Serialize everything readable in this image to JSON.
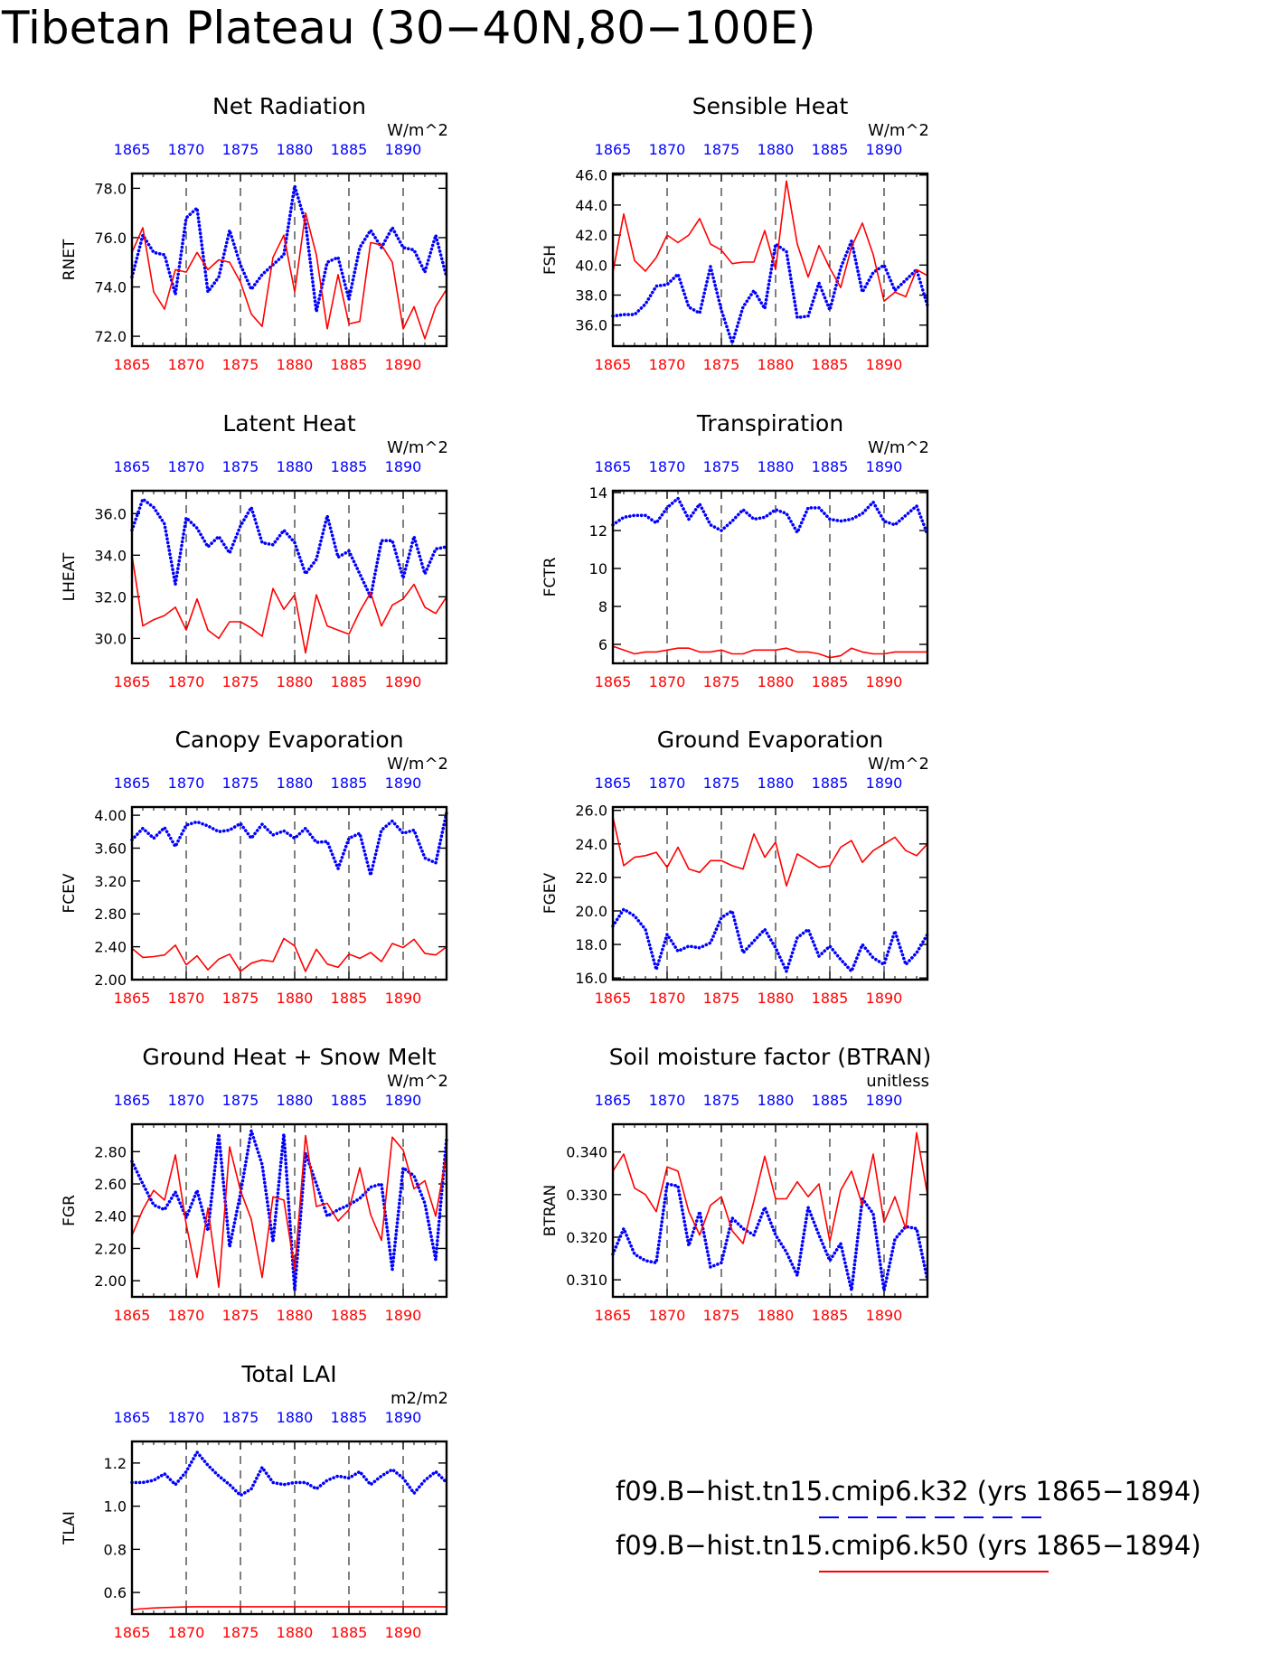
{
  "figure": {
    "title": "Tibetan Plateau (30−40N,80−100E)"
  },
  "colors": {
    "k32": "#0000ff",
    "k50": "#ff0000",
    "axis": "#000000",
    "grid": "#000000"
  },
  "legend": {
    "entries": [
      {
        "label": "f09.B−hist.tn15.cmip6.k32 (yrs 1865−1894)",
        "color": "#0000ff",
        "style": "dashed"
      },
      {
        "label": "f09.B−hist.tn15.cmip6.k50 (yrs 1865−1894)",
        "color": "#ff0000",
        "style": "solid"
      }
    ]
  },
  "chart_data": [
    {
      "type": "line",
      "title": "Net Radiation",
      "ylabel": "RNET",
      "units": "W/m^2",
      "ylim": [
        71.6,
        78.6
      ],
      "yticks": [
        72,
        74,
        76,
        78
      ],
      "ytick_labels": [
        "72.0",
        "74.0",
        "76.0",
        "78.0"
      ],
      "xlim": [
        1865,
        1894
      ],
      "xticks": [
        1865,
        1870,
        1875,
        1880,
        1885,
        1890
      ],
      "series": [
        {
          "name": "f09.B−hist.tn15.cmip6.k32",
          "color": "#0000ff",
          "style": "dotted",
          "values": [
            74.4,
            76.1,
            75.4,
            75.3,
            73.7,
            76.8,
            77.2,
            73.8,
            74.4,
            76.3,
            74.9,
            73.9,
            74.5,
            74.9,
            75.3,
            78.1,
            76.6,
            73.0,
            75.0,
            75.2,
            73.5,
            75.6,
            76.3,
            75.6,
            76.4,
            75.6,
            75.5,
            74.6,
            76.1,
            74.4
          ]
        },
        {
          "name": "f09.B−hist.tn15.cmip6.k50",
          "color": "#ff0000",
          "style": "solid",
          "values": [
            75.4,
            76.4,
            73.8,
            73.1,
            74.7,
            74.6,
            75.4,
            74.7,
            75.1,
            75.0,
            74.2,
            72.9,
            72.4,
            75.2,
            76.1,
            73.8,
            77.0,
            75.3,
            72.3,
            74.5,
            72.5,
            72.6,
            75.8,
            75.7,
            75.0,
            72.3,
            73.2,
            71.9,
            73.2,
            73.9
          ]
        }
      ]
    },
    {
      "type": "line",
      "title": "Sensible Heat",
      "ylabel": "FSH",
      "units": "W/m^2",
      "ylim": [
        34.6,
        46.1
      ],
      "yticks": [
        36,
        38,
        40,
        42,
        44,
        46
      ],
      "ytick_labels": [
        "36.0",
        "38.0",
        "40.0",
        "42.0",
        "44.0",
        "46.0"
      ],
      "xlim": [
        1865,
        1894
      ],
      "xticks": [
        1865,
        1870,
        1875,
        1880,
        1885,
        1890
      ],
      "series": [
        {
          "name": "f09.B−hist.tn15.cmip6.k32",
          "color": "#0000ff",
          "style": "dotted",
          "values": [
            36.6,
            36.7,
            36.7,
            37.4,
            38.6,
            38.7,
            39.4,
            37.2,
            36.8,
            39.9,
            37.0,
            34.8,
            37.2,
            38.3,
            37.1,
            41.4,
            40.9,
            36.5,
            36.6,
            38.8,
            37.0,
            39.8,
            41.6,
            38.2,
            39.5,
            40.0,
            38.3,
            39.0,
            39.7,
            37.3
          ]
        },
        {
          "name": "f09.B−hist.tn15.cmip6.k50",
          "color": "#ff0000",
          "style": "solid",
          "values": [
            39.5,
            43.4,
            40.3,
            39.6,
            40.5,
            42.0,
            41.5,
            42.0,
            43.1,
            41.4,
            41.0,
            40.1,
            40.2,
            40.2,
            42.3,
            39.7,
            45.6,
            41.4,
            39.2,
            41.3,
            39.8,
            38.5,
            41.2,
            42.8,
            40.7,
            37.6,
            38.2,
            37.9,
            39.7,
            39.3
          ]
        }
      ]
    },
    {
      "type": "line",
      "title": "Latent Heat",
      "ylabel": "LHEAT",
      "units": "W/m^2",
      "ylim": [
        28.8,
        37.1
      ],
      "yticks": [
        30,
        32,
        34,
        36
      ],
      "ytick_labels": [
        "30.0",
        "32.0",
        "34.0",
        "36.0"
      ],
      "xlim": [
        1865,
        1894
      ],
      "xticks": [
        1865,
        1870,
        1875,
        1880,
        1885,
        1890
      ],
      "series": [
        {
          "name": "f09.B−hist.tn15.cmip6.k32",
          "color": "#0000ff",
          "style": "dotted",
          "values": [
            35.2,
            36.7,
            36.3,
            35.5,
            32.6,
            35.8,
            35.3,
            34.4,
            34.9,
            34.1,
            35.4,
            36.3,
            34.6,
            34.5,
            35.2,
            34.6,
            33.1,
            33.8,
            35.9,
            33.9,
            34.2,
            33.1,
            32.0,
            34.7,
            34.7,
            32.9,
            34.9,
            33.1,
            34.3,
            34.4
          ]
        },
        {
          "name": "f09.B−hist.tn15.cmip6.k50",
          "color": "#ff0000",
          "style": "solid",
          "values": [
            34.0,
            30.6,
            30.9,
            31.1,
            31.5,
            30.4,
            31.9,
            30.4,
            30.0,
            30.8,
            30.8,
            30.5,
            30.1,
            32.4,
            31.4,
            32.1,
            29.3,
            32.1,
            30.6,
            30.4,
            30.2,
            31.3,
            32.2,
            30.6,
            31.6,
            31.9,
            32.6,
            31.5,
            31.2,
            32.0
          ]
        }
      ]
    },
    {
      "type": "line",
      "title": "Transpiration",
      "ylabel": "FCTR",
      "units": "W/m^2",
      "ylim": [
        5.0,
        14.1
      ],
      "yticks": [
        6,
        8,
        10,
        12,
        14
      ],
      "ytick_labels": [
        "6",
        "8",
        "10",
        "12",
        "14"
      ],
      "xlim": [
        1865,
        1894
      ],
      "xticks": [
        1865,
        1870,
        1875,
        1880,
        1885,
        1890
      ],
      "series": [
        {
          "name": "f09.B−hist.tn15.cmip6.k32",
          "color": "#0000ff",
          "style": "dotted",
          "values": [
            12.3,
            12.7,
            12.8,
            12.8,
            12.4,
            13.2,
            13.7,
            12.6,
            13.4,
            12.3,
            12.0,
            12.5,
            13.1,
            12.6,
            12.7,
            13.1,
            12.9,
            11.9,
            13.2,
            13.2,
            12.6,
            12.5,
            12.6,
            12.9,
            13.5,
            12.5,
            12.3,
            12.8,
            13.3,
            11.8
          ]
        },
        {
          "name": "f09.B−hist.tn15.cmip6.k50",
          "color": "#ff0000",
          "style": "solid",
          "values": [
            5.9,
            5.7,
            5.5,
            5.6,
            5.6,
            5.7,
            5.8,
            5.8,
            5.6,
            5.6,
            5.7,
            5.5,
            5.5,
            5.7,
            5.7,
            5.7,
            5.8,
            5.6,
            5.6,
            5.5,
            5.3,
            5.4,
            5.8,
            5.6,
            5.5,
            5.5,
            5.6,
            5.6,
            5.6,
            5.6
          ]
        }
      ]
    },
    {
      "type": "line",
      "title": "Canopy Evaporation",
      "ylabel": "FCEV",
      "units": "W/m^2",
      "ylim": [
        2.0,
        4.1
      ],
      "yticks": [
        2.0,
        2.4,
        2.8,
        3.2,
        3.6,
        4.0
      ],
      "ytick_labels": [
        "2.00",
        "2.40",
        "2.80",
        "3.20",
        "3.60",
        "4.00"
      ],
      "xlim": [
        1865,
        1894
      ],
      "xticks": [
        1865,
        1870,
        1875,
        1880,
        1885,
        1890
      ],
      "series": [
        {
          "name": "f09.B−hist.tn15.cmip6.k32",
          "color": "#0000ff",
          "style": "dotted",
          "values": [
            3.7,
            3.84,
            3.72,
            3.85,
            3.62,
            3.88,
            3.92,
            3.87,
            3.8,
            3.82,
            3.9,
            3.72,
            3.89,
            3.76,
            3.81,
            3.72,
            3.84,
            3.67,
            3.68,
            3.35,
            3.72,
            3.78,
            3.27,
            3.82,
            3.93,
            3.78,
            3.82,
            3.48,
            3.42,
            4.03
          ]
        },
        {
          "name": "f09.B−hist.tn15.cmip6.k50",
          "color": "#ff0000",
          "style": "solid",
          "values": [
            2.38,
            2.27,
            2.28,
            2.3,
            2.42,
            2.18,
            2.29,
            2.12,
            2.25,
            2.31,
            2.1,
            2.2,
            2.24,
            2.22,
            2.5,
            2.41,
            2.1,
            2.37,
            2.19,
            2.15,
            2.31,
            2.26,
            2.33,
            2.22,
            2.44,
            2.39,
            2.49,
            2.32,
            2.3,
            2.4
          ]
        }
      ]
    },
    {
      "type": "line",
      "title": "Ground Evaporation",
      "ylabel": "FGEV",
      "units": "W/m^2",
      "ylim": [
        15.9,
        26.2
      ],
      "yticks": [
        16,
        18,
        20,
        22,
        24,
        26
      ],
      "ytick_labels": [
        "16.0",
        "18.0",
        "20.0",
        "22.0",
        "24.0",
        "26.0"
      ],
      "xlim": [
        1865,
        1894
      ],
      "xticks": [
        1865,
        1870,
        1875,
        1880,
        1885,
        1890
      ],
      "series": [
        {
          "name": "f09.B−hist.tn15.cmip6.k32",
          "color": "#0000ff",
          "style": "dotted",
          "values": [
            19.1,
            20.1,
            19.7,
            18.9,
            16.5,
            18.6,
            17.6,
            17.9,
            17.8,
            18.1,
            19.6,
            20.0,
            17.5,
            18.2,
            18.9,
            17.8,
            16.4,
            18.4,
            18.9,
            17.3,
            17.9,
            17.1,
            16.4,
            18.0,
            17.2,
            16.8,
            18.8,
            16.8,
            17.5,
            18.6
          ]
        },
        {
          "name": "f09.B−hist.tn15.cmip6.k50",
          "color": "#ff0000",
          "style": "solid",
          "values": [
            25.6,
            22.7,
            23.2,
            23.3,
            23.5,
            22.6,
            23.8,
            22.5,
            22.3,
            23.0,
            23.0,
            22.7,
            22.5,
            24.6,
            23.2,
            24.1,
            21.5,
            23.4,
            23.0,
            22.6,
            22.7,
            23.8,
            24.2,
            22.9,
            23.6,
            24.0,
            24.4,
            23.6,
            23.3,
            24.0
          ]
        }
      ]
    },
    {
      "type": "line",
      "title": "Ground Heat + Snow Melt",
      "ylabel": "FGR",
      "units": "W/m^2",
      "ylim": [
        1.9,
        2.97
      ],
      "yticks": [
        2.0,
        2.2,
        2.4,
        2.6,
        2.8
      ],
      "ytick_labels": [
        "2.00",
        "2.20",
        "2.40",
        "2.60",
        "2.80"
      ],
      "xlim": [
        1865,
        1894
      ],
      "xticks": [
        1865,
        1870,
        1875,
        1880,
        1885,
        1890
      ],
      "series": [
        {
          "name": "f09.B−hist.tn15.cmip6.k32",
          "color": "#0000ff",
          "style": "dotted",
          "values": [
            2.74,
            2.6,
            2.47,
            2.44,
            2.55,
            2.39,
            2.56,
            2.31,
            2.91,
            2.21,
            2.54,
            2.93,
            2.72,
            2.24,
            2.91,
            1.94,
            2.79,
            2.6,
            2.4,
            2.44,
            2.47,
            2.51,
            2.58,
            2.6,
            2.07,
            2.7,
            2.65,
            2.48,
            2.13,
            2.88
          ]
        },
        {
          "name": "f09.B−hist.tn15.cmip6.k50",
          "color": "#ff0000",
          "style": "solid",
          "values": [
            2.28,
            2.44,
            2.56,
            2.5,
            2.78,
            2.35,
            2.02,
            2.45,
            1.96,
            2.83,
            2.56,
            2.38,
            2.02,
            2.52,
            2.5,
            2.07,
            2.9,
            2.46,
            2.48,
            2.37,
            2.44,
            2.7,
            2.41,
            2.25,
            2.89,
            2.81,
            2.57,
            2.62,
            2.4,
            2.79
          ]
        }
      ]
    },
    {
      "type": "line",
      "title": "Soil moisture factor (BTRAN)",
      "ylabel": "BTRAN",
      "units": "unitless",
      "ylim": [
        0.306,
        0.3465
      ],
      "yticks": [
        0.31,
        0.32,
        0.33,
        0.34
      ],
      "ytick_labels": [
        "0.310",
        "0.320",
        "0.330",
        "0.340"
      ],
      "xlim": [
        1865,
        1894
      ],
      "xticks": [
        1865,
        1870,
        1875,
        1880,
        1885,
        1890
      ],
      "series": [
        {
          "name": "f09.B−hist.tn15.cmip6.k32",
          "color": "#0000ff",
          "style": "dotted",
          "values": [
            0.316,
            0.322,
            0.316,
            0.3145,
            0.314,
            0.3325,
            0.332,
            0.318,
            0.326,
            0.313,
            0.314,
            0.3245,
            0.322,
            0.3205,
            0.327,
            0.3205,
            0.3165,
            0.311,
            0.327,
            0.3205,
            0.3145,
            0.3185,
            0.3075,
            0.329,
            0.3255,
            0.3075,
            0.3195,
            0.3225,
            0.322,
            0.31
          ]
        },
        {
          "name": "f09.B−hist.tn15.cmip6.k50",
          "color": "#ff0000",
          "style": "solid",
          "values": [
            0.3355,
            0.3395,
            0.3315,
            0.33,
            0.326,
            0.3365,
            0.3355,
            0.326,
            0.3205,
            0.3275,
            0.3295,
            0.3215,
            0.3185,
            0.3285,
            0.339,
            0.329,
            0.329,
            0.333,
            0.3295,
            0.3325,
            0.319,
            0.331,
            0.3355,
            0.3275,
            0.3395,
            0.3235,
            0.3295,
            0.322,
            0.3445,
            0.33
          ]
        }
      ]
    },
    {
      "type": "line",
      "title": "Total LAI",
      "ylabel": "TLAI",
      "units": "m2/m2",
      "ylim": [
        0.5,
        1.3
      ],
      "yticks": [
        0.6,
        0.8,
        1.0,
        1.2
      ],
      "ytick_labels": [
        "0.6",
        "0.8",
        "1.0",
        "1.2"
      ],
      "xlim": [
        1865,
        1894
      ],
      "xticks": [
        1865,
        1870,
        1875,
        1880,
        1885,
        1890
      ],
      "series": [
        {
          "name": "f09.B−hist.tn15.cmip6.k32",
          "color": "#0000ff",
          "style": "dotted",
          "values": [
            1.11,
            1.11,
            1.12,
            1.15,
            1.1,
            1.16,
            1.25,
            1.19,
            1.14,
            1.1,
            1.05,
            1.08,
            1.18,
            1.11,
            1.1,
            1.11,
            1.11,
            1.08,
            1.12,
            1.14,
            1.13,
            1.16,
            1.1,
            1.14,
            1.17,
            1.13,
            1.06,
            1.12,
            1.16,
            1.11
          ]
        },
        {
          "name": "f09.B−hist.tn15.cmip6.k50",
          "color": "#ff0000",
          "style": "solid",
          "values": [
            0.52,
            0.525,
            0.528,
            0.53,
            0.532,
            0.533,
            0.534,
            0.534,
            0.534,
            0.534,
            0.534,
            0.534,
            0.534,
            0.534,
            0.534,
            0.534,
            0.534,
            0.534,
            0.534,
            0.534,
            0.534,
            0.534,
            0.534,
            0.534,
            0.534,
            0.534,
            0.534,
            0.534,
            0.534,
            0.533
          ]
        }
      ]
    }
  ]
}
